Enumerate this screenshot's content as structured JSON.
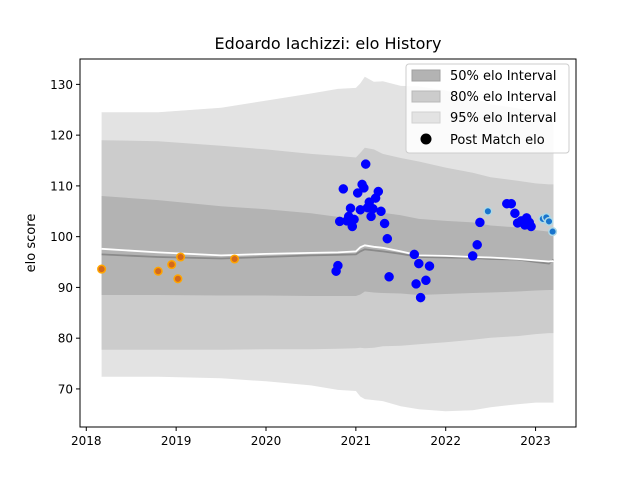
{
  "chart_data": {
    "type": "scatter",
    "title": "Edoardo Iachizzi: elo History",
    "xlabel": "",
    "ylabel": "elo score",
    "xlim": [
      2017.93,
      2023.45
    ],
    "ylim": [
      62.5,
      135.0
    ],
    "x_ticks": [
      2018,
      2019,
      2020,
      2021,
      2022,
      2023
    ],
    "x_tick_labels": [
      "2018",
      "2019",
      "2020",
      "2021",
      "2022",
      "2023"
    ],
    "y_ticks": [
      70,
      80,
      90,
      100,
      110,
      120,
      130
    ],
    "y_tick_labels": [
      "70",
      "80",
      "90",
      "100",
      "110",
      "120",
      "130"
    ],
    "grid": false,
    "legend": {
      "placement": "top-right",
      "entries": [
        "50% elo Interval",
        "80% elo Interval",
        "95% elo Interval",
        "Post Match elo"
      ]
    },
    "colors": {
      "band95": "#e3e3e3",
      "band80": "#cccccc",
      "band50": "#b3b3b3",
      "mean_line": "#8a8a8a",
      "median_line": "#ffffff",
      "point_blue": "#0000ff",
      "point_orange_fill": "#d2691e",
      "point_orange_edge": "#ffa500",
      "point_light_fill": "#1874cd",
      "point_light_edge": "#add8e6"
    },
    "bands": {
      "x": [
        2018.17,
        2018.8,
        2019.5,
        2020.0,
        2020.5,
        2020.8,
        2021.0,
        2021.05,
        2021.1,
        2021.2,
        2021.3,
        2021.5,
        2021.7,
        2022.0,
        2022.3,
        2022.5,
        2022.8,
        2023.0,
        2023.15,
        2023.2
      ],
      "mean": [
        96.5,
        96.0,
        95.7,
        96.0,
        96.3,
        96.4,
        96.5,
        97.1,
        97.5,
        97.3,
        97.1,
        96.6,
        96.0,
        95.9,
        95.8,
        95.6,
        95.5,
        95.0,
        94.7,
        95.5
      ],
      "median": [
        97.6,
        96.9,
        96.3,
        96.6,
        96.8,
        96.9,
        97.1,
        97.9,
        98.3,
        98.0,
        97.8,
        97.1,
        96.3,
        96.2,
        96.0,
        95.9,
        95.6,
        95.3,
        95.1,
        95.2
      ],
      "p50": {
        "lower": [
          88.5,
          88.5,
          88.4,
          88.4,
          88.3,
          88.3,
          88.3,
          88.6,
          89.2,
          89.0,
          88.9,
          88.8,
          88.5,
          88.7,
          88.9,
          89.0,
          89.2,
          89.4,
          89.5,
          89.5
        ],
        "upper": [
          108.0,
          107.2,
          106.0,
          105.4,
          104.6,
          103.9,
          103.8,
          104.4,
          104.9,
          104.8,
          104.7,
          104.2,
          103.5,
          103.1,
          102.8,
          102.2,
          101.8,
          101.3,
          101.0,
          101.0
        ]
      },
      "p80": {
        "lower": [
          77.7,
          77.7,
          77.7,
          77.8,
          77.8,
          77.9,
          78.0,
          78.1,
          78.0,
          78.1,
          78.4,
          78.5,
          78.8,
          79.2,
          79.7,
          80.1,
          80.4,
          80.8,
          81.0,
          81.0
        ],
        "upper": [
          119.0,
          118.8,
          117.9,
          117.2,
          116.3,
          115.9,
          115.6,
          116.5,
          117.5,
          117.2,
          116.3,
          115.5,
          114.8,
          113.6,
          112.6,
          111.7,
          111.0,
          110.5,
          110.3,
          110.3
        ]
      },
      "p95": {
        "lower": [
          72.4,
          72.4,
          72.1,
          71.5,
          70.7,
          69.8,
          69.6,
          68.5,
          68.0,
          67.8,
          67.6,
          66.6,
          66.0,
          65.6,
          65.8,
          66.4,
          67.0,
          67.3,
          67.3,
          67.3
        ],
        "upper": [
          124.5,
          124.5,
          125.4,
          126.8,
          128.2,
          129.1,
          129.3,
          130.2,
          131.5,
          130.5,
          130.6,
          129.7,
          129.6,
          128.8,
          127.4,
          126.1,
          125.3,
          124.6,
          124.3,
          124.3
        ]
      }
    },
    "series": [
      {
        "name": "Post Match elo",
        "style": "blue",
        "points": [
          [
            2020.78,
            93.2
          ],
          [
            2020.8,
            94.3
          ],
          [
            2020.82,
            103.0
          ],
          [
            2020.86,
            109.4
          ],
          [
            2020.9,
            103.1
          ],
          [
            2020.92,
            104.0
          ],
          [
            2020.94,
            105.6
          ],
          [
            2020.96,
            102.0
          ],
          [
            2020.98,
            103.4
          ],
          [
            2021.02,
            108.6
          ],
          [
            2021.05,
            105.3
          ],
          [
            2021.07,
            110.3
          ],
          [
            2021.09,
            109.6
          ],
          [
            2021.11,
            114.3
          ],
          [
            2021.13,
            105.7
          ],
          [
            2021.15,
            106.8
          ],
          [
            2021.17,
            104.0
          ],
          [
            2021.19,
            105.5
          ],
          [
            2021.22,
            107.6
          ],
          [
            2021.25,
            108.9
          ],
          [
            2021.28,
            105.0
          ],
          [
            2021.32,
            102.6
          ],
          [
            2021.35,
            99.6
          ],
          [
            2021.37,
            92.1
          ],
          [
            2021.65,
            96.5
          ],
          [
            2021.67,
            90.7
          ],
          [
            2021.7,
            94.7
          ],
          [
            2021.72,
            88.0
          ],
          [
            2021.78,
            91.4
          ],
          [
            2021.82,
            94.2
          ],
          [
            2022.3,
            96.2
          ],
          [
            2022.35,
            98.4
          ],
          [
            2022.38,
            102.8
          ],
          [
            2022.68,
            106.5
          ],
          [
            2022.73,
            106.5
          ],
          [
            2022.77,
            104.6
          ],
          [
            2022.8,
            102.7
          ],
          [
            2022.84,
            103.1
          ],
          [
            2022.88,
            102.3
          ],
          [
            2022.9,
            103.7
          ],
          [
            2022.93,
            102.8
          ],
          [
            2022.95,
            102.0
          ]
        ]
      },
      {
        "name": "",
        "style": "orange",
        "points": [
          [
            2018.17,
            93.6
          ],
          [
            2018.8,
            93.2
          ],
          [
            2018.95,
            94.5
          ],
          [
            2019.02,
            91.7
          ],
          [
            2019.05,
            96.0
          ],
          [
            2019.65,
            95.6
          ]
        ]
      },
      {
        "name": "",
        "style": "light",
        "points": [
          [
            2022.47,
            105.0
          ],
          [
            2023.08,
            103.5
          ],
          [
            2023.12,
            103.8
          ],
          [
            2023.15,
            103.0
          ],
          [
            2023.19,
            101.0
          ]
        ]
      }
    ]
  }
}
